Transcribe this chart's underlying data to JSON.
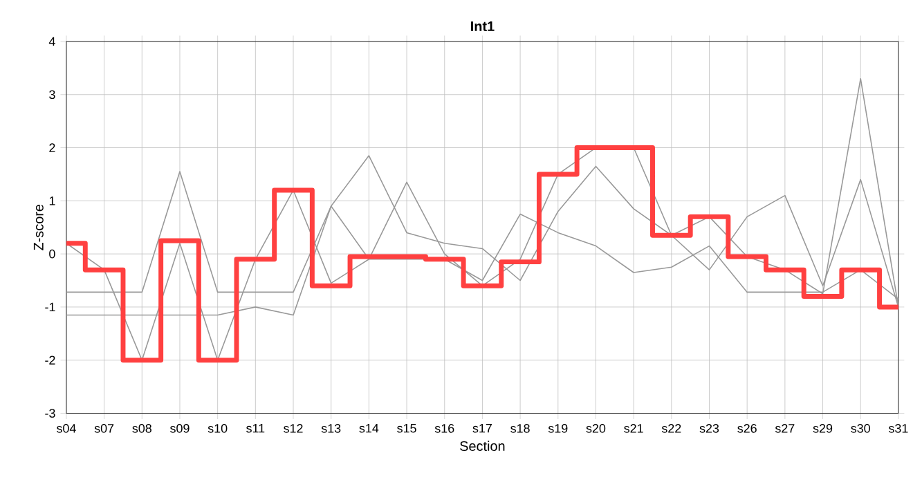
{
  "chart_data": {
    "type": "line",
    "title": "Int1",
    "xlabel": "Section",
    "ylabel": "Z-score",
    "categories": [
      "s04",
      "s07",
      "s08",
      "s09",
      "s10",
      "s11",
      "s12",
      "s13",
      "s14",
      "s15",
      "s16",
      "s17",
      "s18",
      "s19",
      "s20",
      "s21",
      "s22",
      "s23",
      "s26",
      "s27",
      "s29",
      "s30",
      "s31"
    ],
    "series": [
      {
        "color": "#999999",
        "values": [
          0.2,
          -0.3,
          -2.0,
          0.2,
          -2.0,
          -0.1,
          1.2,
          -0.55,
          -0.1,
          1.35,
          0.0,
          -0.6,
          -0.1,
          1.5,
          2.0,
          2.0,
          0.35,
          0.7,
          -0.05,
          -0.3,
          -0.75,
          3.3,
          -1.0
        ]
      },
      {
        "color": "#999999",
        "values": [
          -0.72,
          -0.72,
          -0.72,
          1.55,
          -0.72,
          -0.72,
          -0.72,
          0.9,
          1.85,
          0.4,
          0.2,
          0.1,
          -0.5,
          0.8,
          1.65,
          0.85,
          0.35,
          -0.3,
          0.7,
          1.1,
          -0.6,
          1.4,
          -1.0
        ]
      },
      {
        "color": "#999999",
        "values": [
          -1.15,
          -1.15,
          -1.15,
          -1.15,
          -1.15,
          -1.0,
          -1.15,
          0.9,
          -0.1,
          null,
          -0.1,
          -0.5,
          0.75,
          0.4,
          0.15,
          -0.35,
          -0.25,
          0.15,
          -0.72,
          -0.72,
          -0.72,
          -0.3,
          -0.85
        ]
      },
      {
        "type": "step",
        "color": "#ff4040",
        "values": [
          0.2,
          -0.3,
          -2.0,
          0.25,
          -2.0,
          -0.1,
          1.2,
          -0.6,
          -0.05,
          -0.05,
          -0.1,
          -0.6,
          -0.15,
          1.5,
          2.0,
          2.0,
          0.35,
          0.7,
          -0.05,
          -0.3,
          -0.8,
          -0.3,
          -1.0
        ]
      }
    ],
    "ylim": [
      -3,
      4
    ],
    "yticks": [
      -3,
      -2,
      -1,
      0,
      1,
      2,
      3,
      4
    ],
    "grid": true,
    "marker": "none",
    "line_style": "solid"
  }
}
